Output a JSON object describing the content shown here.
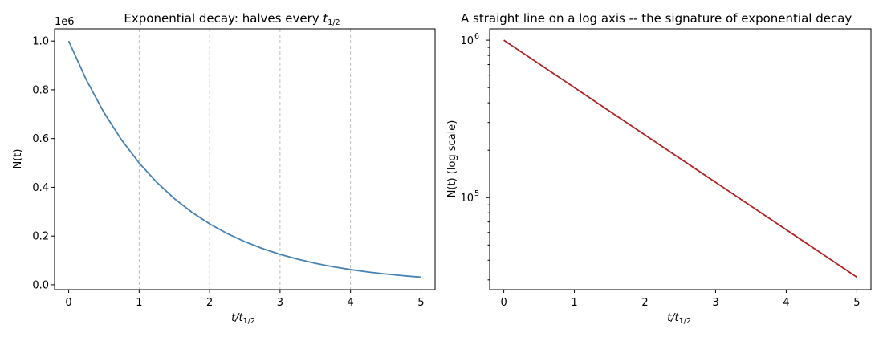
{
  "chart_data": [
    {
      "type": "line",
      "title": "Exponential decay: halves every t_{1/2}",
      "title_text": "Exponential decay: halves every ",
      "title_symbol": "t",
      "title_subscript": "1/2",
      "xlabel_symbol": "t/t",
      "xlabel_subscript": "1/2",
      "ylabel": "N(t)",
      "offset_text": "1e6",
      "xlim": [
        -0.2,
        5.2
      ],
      "ylim": [
        -0.02,
        1.05
      ],
      "ticks_x": [
        0,
        1,
        2,
        3,
        4,
        5
      ],
      "ticks_x_labels": [
        "0",
        "1",
        "2",
        "3",
        "4",
        "5"
      ],
      "ticks_y": [
        0.0,
        0.2,
        0.4,
        0.6,
        0.8,
        1.0
      ],
      "ticks_y_labels": [
        "0.0",
        "0.2",
        "0.4",
        "0.6",
        "0.8",
        "1.0"
      ],
      "y_scale": "linear",
      "vertical_gridlines_at": [
        1,
        2,
        3,
        4
      ],
      "grid": "dashed vertical lines at t = 1, 2, 3, 4",
      "legend": "none",
      "series": [
        {
          "color": "#4682b4",
          "x": [
            0,
            0.25,
            0.5,
            0.75,
            1,
            1.25,
            1.5,
            1.75,
            2,
            2.25,
            2.5,
            2.75,
            3,
            3.25,
            3.5,
            3.75,
            4,
            4.25,
            4.5,
            4.75,
            5
          ],
          "y": [
            1000000,
            840896,
            707107,
            594604,
            500000,
            420448,
            353553,
            297302,
            250000,
            210224,
            176777,
            148651,
            125000,
            105112,
            88388,
            74325,
            62500,
            52556,
            44194,
            37163,
            31250
          ]
        }
      ]
    },
    {
      "type": "line",
      "title": "A straight line on a log axis -- the signature of exponential decay",
      "xlabel_symbol": "t/t",
      "xlabel_subscript": "1/2",
      "ylabel": "N(t) (log scale)",
      "xlim": [
        -0.2,
        5.2
      ],
      "ylim": [
        26000,
        1180000
      ],
      "y_scale": "log",
      "ticks_x": [
        0,
        1,
        2,
        3,
        4,
        5
      ],
      "ticks_x_labels": [
        "0",
        "1",
        "2",
        "3",
        "4",
        "5"
      ],
      "ticks_y": [
        100000,
        1000000
      ],
      "ticks_y_base": "10",
      "ticks_y_exponents": [
        "5",
        "6"
      ],
      "grid": "off",
      "legend": "none",
      "series": [
        {
          "color": "#b22222",
          "x": [
            0,
            5
          ],
          "y": [
            1000000,
            31250
          ]
        }
      ]
    }
  ]
}
